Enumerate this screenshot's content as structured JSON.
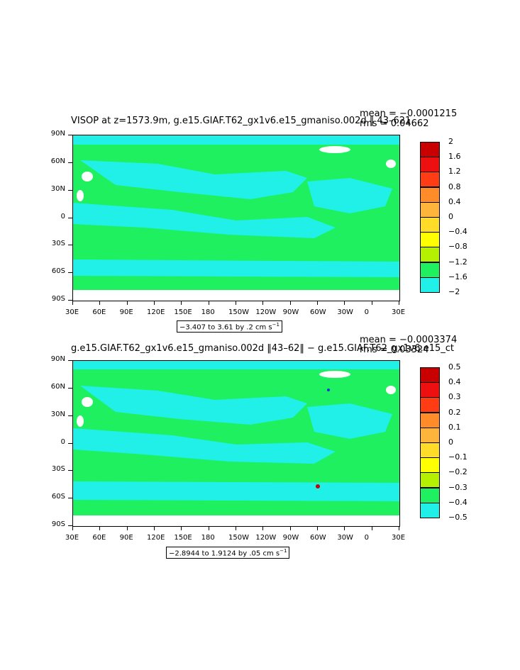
{
  "colors": {
    "ocean_zero": "#1ef05f",
    "cyan": "#20f0e8",
    "land": "#ffffff"
  },
  "y_ticks": [
    "90N",
    "60N",
    "30N",
    "0",
    "30S",
    "60S",
    "90S"
  ],
  "x_ticks": [
    "30E",
    "60E",
    "90E",
    "120E",
    "150E",
    "180",
    "150W",
    "120W",
    "90W",
    "60W",
    "30W",
    "0",
    "30E"
  ],
  "panels": [
    {
      "title": "VISOP at z=1573.9m, g.e15.GIAF.T62_gx1v6.e15_gmaniso.002d ‖ 43–621",
      "mean": "mean = −0.0001215",
      "rms": "rms = 0.04662",
      "range": "−3.407 to 3.61 by .2 cm s",
      "range_sup": "−1",
      "legend": [
        {
          "label": "2",
          "color": "#c80000"
        },
        {
          "label": "1.6",
          "color": "#ee1010"
        },
        {
          "label": "1.2",
          "color": "#ff3c14"
        },
        {
          "label": "0.8",
          "color": "#ff8c28"
        },
        {
          "label": "0.4",
          "color": "#ffb43c"
        },
        {
          "label": "0",
          "color": "#ffdc28"
        },
        {
          "label": "−0.4",
          "color": "#ffff00"
        },
        {
          "label": "−0.8",
          "color": "#b4f000"
        },
        {
          "label": "−1.2",
          "color": "#1ef05f"
        },
        {
          "label": "−1.6",
          "color": "#20f0e8"
        },
        {
          "label": "−2",
          "color": "#14d2ff"
        }
      ]
    },
    {
      "title": "g.e15.GIAF.T62_gx1v6.e15_gmaniso.002d ‖43–62‖ − g.e15.GIAF.T62_gx1v6.e15_ct",
      "mean": "mean = −0.0003374",
      "rms": "rms = 0.03324",
      "range": "−2.8944 to 1.9124 by .05 cm s",
      "range_sup": "−1",
      "legend": [
        {
          "label": "0.5",
          "color": "#c80000"
        },
        {
          "label": "0.4",
          "color": "#ee1010"
        },
        {
          "label": "0.3",
          "color": "#ff3c14"
        },
        {
          "label": "0.2",
          "color": "#ff8c28"
        },
        {
          "label": "0.1",
          "color": "#ffb43c"
        },
        {
          "label": "0",
          "color": "#ffdc28"
        },
        {
          "label": "−0.1",
          "color": "#ffff00"
        },
        {
          "label": "−0.2",
          "color": "#b4f000"
        },
        {
          "label": "−0.3",
          "color": "#1ef05f"
        },
        {
          "label": "−0.4",
          "color": "#20f0e8"
        },
        {
          "label": "−0.5",
          "color": "#14d2ff"
        }
      ]
    }
  ]
}
